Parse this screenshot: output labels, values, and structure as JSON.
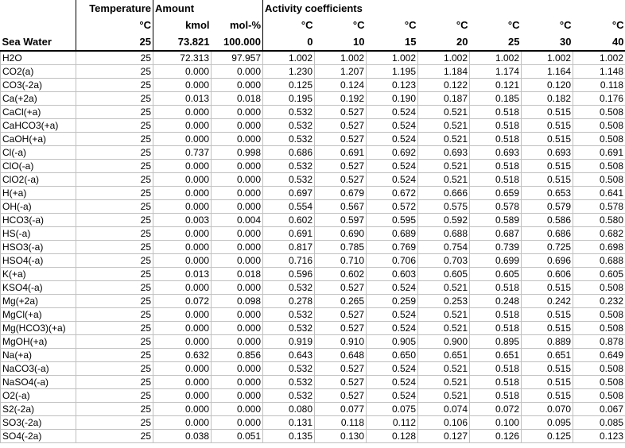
{
  "header": {
    "temperature": "Temperature",
    "amount": "Amount",
    "activity": "Activity coefficients",
    "units": [
      "°C",
      "kmol",
      "mol-%",
      "°C",
      "°C",
      "°C",
      "°C",
      "°C",
      "°C",
      "°C"
    ],
    "sea_water": [
      "Sea Water",
      "25",
      "73.821",
      "100.000",
      "0",
      "10",
      "15",
      "20",
      "25",
      "30",
      "40"
    ]
  },
  "table": {
    "rows": [
      [
        "H2O",
        "25",
        "72.313",
        "97.957",
        "1.002",
        "1.002",
        "1.002",
        "1.002",
        "1.002",
        "1.002",
        "1.002"
      ],
      [
        "CO2(a)",
        "25",
        "0.000",
        "0.000",
        "1.230",
        "1.207",
        "1.195",
        "1.184",
        "1.174",
        "1.164",
        "1.148"
      ],
      [
        "CO3(-2a)",
        "25",
        "0.000",
        "0.000",
        "0.125",
        "0.124",
        "0.123",
        "0.122",
        "0.121",
        "0.120",
        "0.118"
      ],
      [
        "Ca(+2a)",
        "25",
        "0.013",
        "0.018",
        "0.195",
        "0.192",
        "0.190",
        "0.187",
        "0.185",
        "0.182",
        "0.176"
      ],
      [
        "CaCl(+a)",
        "25",
        "0.000",
        "0.000",
        "0.532",
        "0.527",
        "0.524",
        "0.521",
        "0.518",
        "0.515",
        "0.508"
      ],
      [
        "CaHCO3(+a)",
        "25",
        "0.000",
        "0.000",
        "0.532",
        "0.527",
        "0.524",
        "0.521",
        "0.518",
        "0.515",
        "0.508"
      ],
      [
        "CaOH(+a)",
        "25",
        "0.000",
        "0.000",
        "0.532",
        "0.527",
        "0.524",
        "0.521",
        "0.518",
        "0.515",
        "0.508"
      ],
      [
        "Cl(-a)",
        "25",
        "0.737",
        "0.998",
        "0.686",
        "0.691",
        "0.692",
        "0.693",
        "0.693",
        "0.693",
        "0.691"
      ],
      [
        "ClO(-a)",
        "25",
        "0.000",
        "0.000",
        "0.532",
        "0.527",
        "0.524",
        "0.521",
        "0.518",
        "0.515",
        "0.508"
      ],
      [
        "ClO2(-a)",
        "25",
        "0.000",
        "0.000",
        "0.532",
        "0.527",
        "0.524",
        "0.521",
        "0.518",
        "0.515",
        "0.508"
      ],
      [
        "H(+a)",
        "25",
        "0.000",
        "0.000",
        "0.697",
        "0.679",
        "0.672",
        "0.666",
        "0.659",
        "0.653",
        "0.641"
      ],
      [
        "OH(-a)",
        "25",
        "0.000",
        "0.000",
        "0.554",
        "0.567",
        "0.572",
        "0.575",
        "0.578",
        "0.579",
        "0.578"
      ],
      [
        "HCO3(-a)",
        "25",
        "0.003",
        "0.004",
        "0.602",
        "0.597",
        "0.595",
        "0.592",
        "0.589",
        "0.586",
        "0.580"
      ],
      [
        "HS(-a)",
        "25",
        "0.000",
        "0.000",
        "0.691",
        "0.690",
        "0.689",
        "0.688",
        "0.687",
        "0.686",
        "0.682"
      ],
      [
        "HSO3(-a)",
        "25",
        "0.000",
        "0.000",
        "0.817",
        "0.785",
        "0.769",
        "0.754",
        "0.739",
        "0.725",
        "0.698"
      ],
      [
        "HSO4(-a)",
        "25",
        "0.000",
        "0.000",
        "0.716",
        "0.710",
        "0.706",
        "0.703",
        "0.699",
        "0.696",
        "0.688"
      ],
      [
        "K(+a)",
        "25",
        "0.013",
        "0.018",
        "0.596",
        "0.602",
        "0.603",
        "0.605",
        "0.605",
        "0.606",
        "0.605"
      ],
      [
        "KSO4(-a)",
        "25",
        "0.000",
        "0.000",
        "0.532",
        "0.527",
        "0.524",
        "0.521",
        "0.518",
        "0.515",
        "0.508"
      ],
      [
        "Mg(+2a)",
        "25",
        "0.072",
        "0.098",
        "0.278",
        "0.265",
        "0.259",
        "0.253",
        "0.248",
        "0.242",
        "0.232"
      ],
      [
        "MgCl(+a)",
        "25",
        "0.000",
        "0.000",
        "0.532",
        "0.527",
        "0.524",
        "0.521",
        "0.518",
        "0.515",
        "0.508"
      ],
      [
        "Mg(HCO3)(+a)",
        "25",
        "0.000",
        "0.000",
        "0.532",
        "0.527",
        "0.524",
        "0.521",
        "0.518",
        "0.515",
        "0.508"
      ],
      [
        "MgOH(+a)",
        "25",
        "0.000",
        "0.000",
        "0.919",
        "0.910",
        "0.905",
        "0.900",
        "0.895",
        "0.889",
        "0.878"
      ],
      [
        "Na(+a)",
        "25",
        "0.632",
        "0.856",
        "0.643",
        "0.648",
        "0.650",
        "0.651",
        "0.651",
        "0.651",
        "0.649"
      ],
      [
        "NaCO3(-a)",
        "25",
        "0.000",
        "0.000",
        "0.532",
        "0.527",
        "0.524",
        "0.521",
        "0.518",
        "0.515",
        "0.508"
      ],
      [
        "NaSO4(-a)",
        "25",
        "0.000",
        "0.000",
        "0.532",
        "0.527",
        "0.524",
        "0.521",
        "0.518",
        "0.515",
        "0.508"
      ],
      [
        "O2(-a)",
        "25",
        "0.000",
        "0.000",
        "0.532",
        "0.527",
        "0.524",
        "0.521",
        "0.518",
        "0.515",
        "0.508"
      ],
      [
        "S2(-2a)",
        "25",
        "0.000",
        "0.000",
        "0.080",
        "0.077",
        "0.075",
        "0.074",
        "0.072",
        "0.070",
        "0.067"
      ],
      [
        "SO3(-2a)",
        "25",
        "0.000",
        "0.000",
        "0.131",
        "0.118",
        "0.112",
        "0.106",
        "0.100",
        "0.095",
        "0.085"
      ],
      [
        "SO4(-2a)",
        "25",
        "0.038",
        "0.051",
        "0.135",
        "0.130",
        "0.128",
        "0.127",
        "0.126",
        "0.125",
        "0.123"
      ]
    ]
  }
}
